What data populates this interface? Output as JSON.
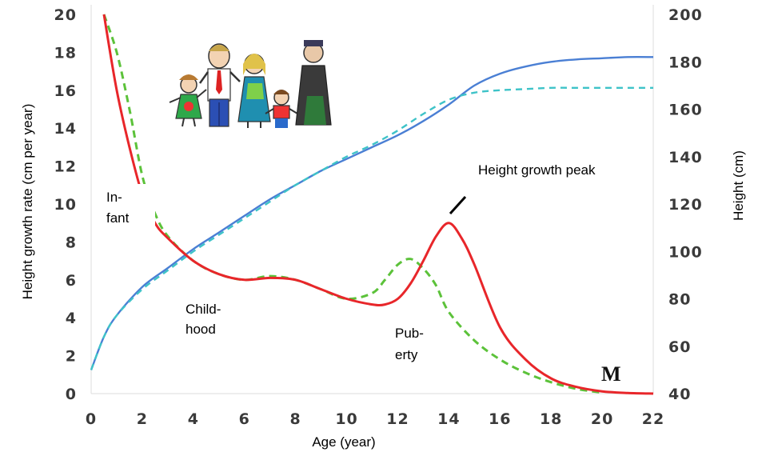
{
  "chart_data": {
    "type": "line",
    "x_axis": {
      "label": "Age (year)",
      "range": [
        0,
        22
      ],
      "ticks": [
        "0",
        "2",
        "4",
        "6",
        "8",
        "10",
        "12",
        "14",
        "16",
        "18",
        "20",
        "22"
      ]
    },
    "y_axis_left": {
      "label": "Height growth rate (cm per year)",
      "range": [
        0,
        20
      ],
      "ticks": [
        "0",
        "2",
        "4",
        "6",
        "8",
        "10",
        "12",
        "14",
        "16",
        "18",
        "20"
      ]
    },
    "y_axis_right": {
      "label": "Height (cm)",
      "range": [
        40,
        200
      ],
      "ticks": [
        "40",
        "60",
        "80",
        "100",
        "120",
        "140",
        "160",
        "180",
        "200"
      ]
    },
    "series": [
      {
        "axis": "left",
        "color": "#e8262a",
        "style": "solid",
        "x": [
          0.5,
          1,
          1.5,
          2,
          2.5,
          3,
          4,
          5,
          6,
          7,
          8,
          9,
          10,
          11,
          11.5,
          12,
          12.5,
          13,
          13.5,
          14,
          14.5,
          15,
          16,
          17,
          18,
          19,
          20,
          21,
          22
        ],
        "y": [
          20,
          16,
          13,
          10.5,
          9,
          8.2,
          7,
          6.3,
          6,
          6.1,
          6,
          5.5,
          5.0,
          4.7,
          4.7,
          5.0,
          5.8,
          7.0,
          8.3,
          9.0,
          8.2,
          6.8,
          3.5,
          1.8,
          0.8,
          0.35,
          0.12,
          0.03,
          0.0
        ]
      },
      {
        "axis": "left",
        "color": "#5cc23a",
        "style": "dashed",
        "x": [
          0.5,
          1,
          1.5,
          2,
          2.5,
          3,
          4,
          5,
          6,
          7,
          8,
          9,
          10,
          11,
          11.5,
          12,
          12.5,
          13,
          13.5,
          14,
          15,
          16,
          17,
          18,
          19,
          20
        ],
        "y": [
          20,
          18,
          15,
          11.5,
          9.5,
          8.3,
          7.0,
          6.3,
          6.0,
          6.2,
          6.0,
          5.5,
          5.0,
          5.3,
          6.0,
          6.8,
          7.1,
          6.6,
          5.7,
          4.3,
          2.8,
          1.8,
          1.1,
          0.6,
          0.25,
          0.05
        ]
      },
      {
        "axis": "right",
        "color": "#4a7fd4",
        "style": "solid",
        "x": [
          0,
          0.5,
          1,
          2,
          3,
          4,
          5,
          6,
          7,
          8,
          9,
          10,
          11,
          12,
          13,
          14,
          15,
          16,
          17,
          18,
          19,
          20,
          21,
          22
        ],
        "y": [
          50,
          64,
          73,
          85,
          93,
          101,
          108,
          115,
          122,
          128,
          134,
          139,
          144,
          149,
          155,
          162,
          170,
          175,
          178,
          180,
          181,
          181.5,
          182,
          182
        ]
      },
      {
        "axis": "right",
        "color": "#3ec3c8",
        "style": "dashed",
        "x": [
          0,
          0.5,
          1,
          2,
          3,
          4,
          5,
          6,
          7,
          8,
          9,
          10,
          11,
          12,
          13,
          14,
          15,
          16,
          17,
          18,
          19,
          20,
          21,
          22
        ],
        "y": [
          50,
          64,
          73,
          84,
          92,
          100,
          107,
          114,
          121,
          128,
          134,
          140,
          145,
          151,
          158,
          164,
          167,
          168,
          168.5,
          169,
          169,
          169,
          169,
          169
        ]
      }
    ],
    "annotations": {
      "infant_line1": "In-",
      "infant_line2": "fant",
      "childhood_line1": "Child-",
      "childhood_line2": "hood",
      "puberty_line1": "Pub-",
      "puberty_line2": "erty",
      "peak": "Height growth peak",
      "corner_mark": "M"
    },
    "grid": false
  }
}
